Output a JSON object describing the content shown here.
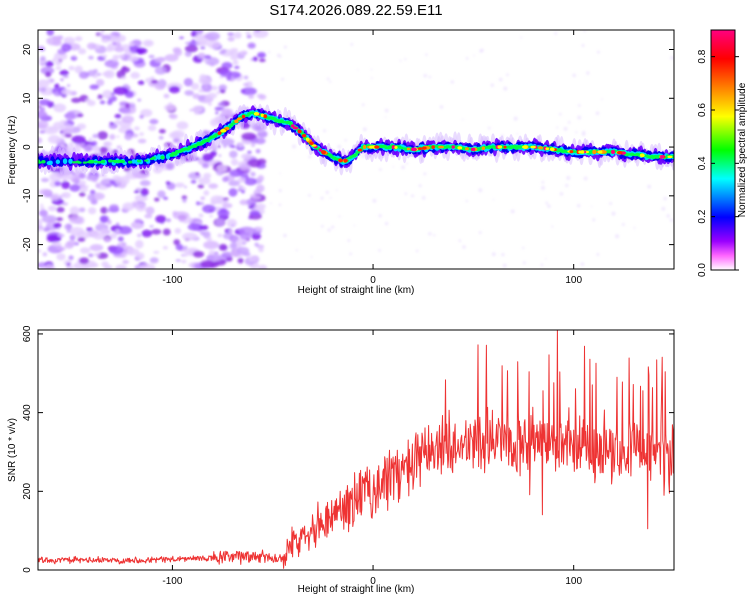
{
  "title": "S174.2026.089.22.59.E11",
  "chart_data": [
    {
      "type": "heatmap",
      "xlabel": "Height of straight line (km)",
      "ylabel": "Frequency (Hz)",
      "xlim": [
        -167,
        150
      ],
      "ylim": [
        -25,
        24
      ],
      "xticks": [
        -100,
        0,
        100
      ],
      "yticks": [
        -20,
        -10,
        0,
        10,
        20
      ],
      "ridge": {
        "x": [
          -167,
          -150,
          -130,
          -115,
          -100,
          -90,
          -80,
          -72,
          -66,
          -60,
          -55,
          -48,
          -42,
          -36,
          -30,
          -25,
          -20,
          -15,
          -10,
          -5,
          0,
          10,
          20,
          30,
          40,
          50,
          60,
          70,
          80,
          90,
          100,
          110,
          120,
          130,
          140,
          150
        ],
        "frequency": [
          -3,
          -3,
          -3,
          -3,
          -1.5,
          0,
          2,
          4,
          6,
          7,
          6.5,
          5.5,
          5,
          3,
          0.5,
          -1,
          -2,
          -3,
          -2,
          0,
          0,
          0,
          -0.5,
          0,
          0,
          -0.5,
          0,
          0,
          0,
          -0.5,
          -1,
          -1,
          -1,
          -1.5,
          -2,
          -2
        ]
      },
      "noise_region_x": [
        -167,
        -55
      ],
      "colorbar": {
        "label": "Normalized spectral amplitude",
        "range": [
          0,
          0.9
        ],
        "ticks": [
          0.0,
          0.2,
          0.4,
          0.6,
          0.8
        ],
        "tick_labels": [
          "0.0",
          "0.2",
          "0.4",
          "0.6",
          "0.8"
        ],
        "colors": [
          "#ffffff",
          "#ff00ff",
          "#8000ff",
          "#0000ff",
          "#00ffff",
          "#00ff00",
          "#ffff00",
          "#ff8000",
          "#ff0000",
          "#ff0080"
        ]
      }
    },
    {
      "type": "line",
      "xlabel": "Height of straight line (km)",
      "ylabel": "SNR (10 * v/v)",
      "xlim": [
        -167,
        150
      ],
      "ylim": [
        0,
        610
      ],
      "xticks": [
        -100,
        0,
        100
      ],
      "yticks": [
        0,
        200,
        400,
        600
      ],
      "color": "#ee3333",
      "envelope": {
        "x": [
          -167,
          -120,
          -80,
          -60,
          -45,
          -42,
          -35,
          -25,
          -10,
          0,
          10,
          20,
          30,
          40,
          50,
          60,
          70,
          80,
          90,
          100,
          110,
          120,
          130,
          140,
          150
        ],
        "snr": [
          25,
          25,
          30,
          35,
          30,
          55,
          95,
          125,
          175,
          205,
          240,
          265,
          300,
          320,
          340,
          330,
          325,
          330,
          320,
          315,
          310,
          310,
          305,
          305,
          305
        ]
      }
    }
  ]
}
